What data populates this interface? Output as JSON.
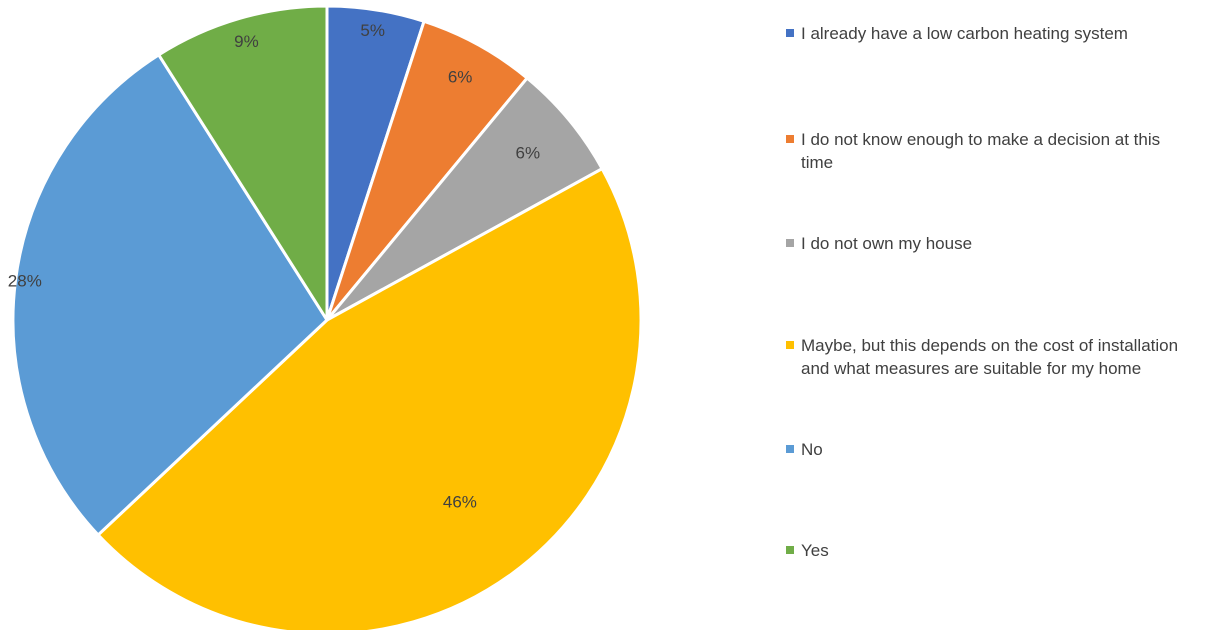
{
  "chart_data": {
    "type": "pie",
    "start_angle_deg": 0,
    "direction": "clockwise",
    "series": [
      {
        "values": [
          5,
          6,
          6,
          46,
          28,
          9
        ],
        "data_labels": [
          "5%",
          "6%",
          "6%",
          "46%",
          "28%",
          "9%"
        ]
      }
    ],
    "categories": [
      "I already have a low carbon heating system",
      "I do not know enough to make a decision at this time",
      "I do not own my house",
      "Maybe, but this depends on the cost of installation and what measures are suitable for my home",
      "No",
      "Yes"
    ],
    "colors": [
      "#4472c4",
      "#ed7d31",
      "#a5a5a5",
      "#ffc000",
      "#5b9bd5",
      "#70ad47"
    ],
    "legend": {
      "position": "right",
      "entries": [
        {
          "label": "I already have a low carbon heating system",
          "color": "#4472c4"
        },
        {
          "label": "I do not know enough to make a decision at this time",
          "color": "#ed7d31"
        },
        {
          "label": "I do not own my house",
          "color": "#a5a5a5"
        },
        {
          "label": "Maybe, but this depends on the cost of installation and what measures are suitable for my home",
          "color": "#ffc000"
        },
        {
          "label": "No",
          "color": "#5b9bd5"
        },
        {
          "label": "Yes",
          "color": "#70ad47"
        }
      ]
    }
  }
}
